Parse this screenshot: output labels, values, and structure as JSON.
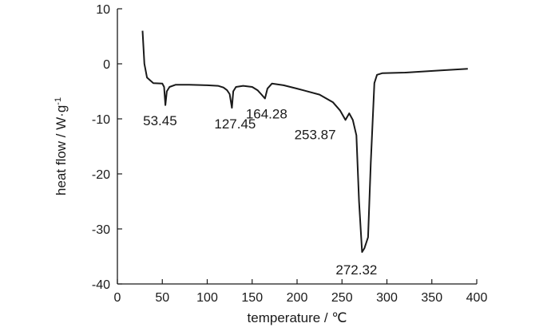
{
  "chart_data": {
    "type": "line",
    "title": "",
    "xlabel": "temperature / ℃",
    "ylabel": "heat flow / W·g",
    "ylabel_sup": "-1",
    "xlim": [
      0,
      400
    ],
    "ylim": [
      -40,
      10
    ],
    "xticks": [
      0,
      50,
      100,
      150,
      200,
      250,
      300,
      350,
      400
    ],
    "yticks": [
      10,
      0,
      -10,
      -20,
      -30,
      -40
    ],
    "grid": false,
    "line_color": "#1a1a1a",
    "series": [
      {
        "x": [
          28,
          30,
          33,
          40,
          50,
          52,
          53.45,
          55,
          58,
          65,
          80,
          100,
          112,
          118,
          122,
          125,
          127.45,
          129,
          132,
          140,
          150,
          156,
          160,
          164.28,
          167,
          172,
          185,
          200,
          225,
          240,
          248,
          253.87,
          258,
          262,
          266,
          269,
          272.32,
          275,
          279,
          282,
          286,
          289,
          295,
          320,
          360,
          390
        ],
        "y": [
          6,
          0,
          -2.5,
          -3.5,
          -3.6,
          -4.2,
          -7.5,
          -5,
          -4.2,
          -3.8,
          -3.8,
          -3.9,
          -4.0,
          -4.3,
          -4.8,
          -5.5,
          -8,
          -5,
          -4.2,
          -4.0,
          -4.2,
          -4.8,
          -5.5,
          -6.3,
          -4.5,
          -3.6,
          -3.9,
          -4.5,
          -5.6,
          -7,
          -8.5,
          -10.2,
          -9,
          -10.2,
          -13,
          -25,
          -34.2,
          -33.5,
          -31.5,
          -18,
          -3.5,
          -2.0,
          -1.7,
          -1.6,
          -1.2,
          -0.9
        ]
      }
    ],
    "annotations": [
      {
        "text": "53.45",
        "x": 53.45,
        "y": -7.5,
        "dx": -28,
        "dy": 25
      },
      {
        "text": "127.45",
        "x": 127.45,
        "y": -8,
        "dx": -22,
        "dy": 26
      },
      {
        "text": "164.28",
        "x": 164.28,
        "y": -6.3,
        "dx": -24,
        "dy": 25
      },
      {
        "text": "253.87",
        "x": 253.87,
        "y": -10.2,
        "dx": -64,
        "dy": 24
      },
      {
        "text": "272.32",
        "x": 272.32,
        "y": -34.2,
        "dx": -33,
        "dy": 28
      }
    ]
  }
}
